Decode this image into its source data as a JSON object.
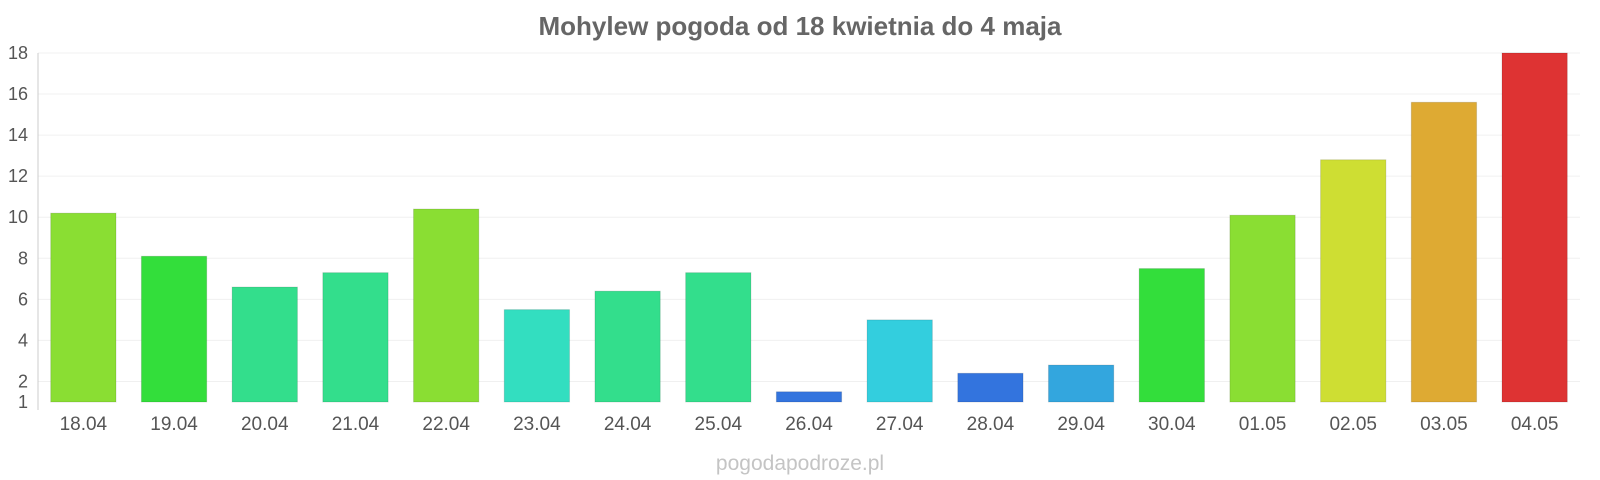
{
  "chart_data": {
    "type": "bar",
    "title": "Mohylew pogoda od 18 kwietnia do 4 maja",
    "xlabel": "",
    "ylabel": "",
    "categories": [
      "18.04",
      "19.04",
      "20.04",
      "21.04",
      "22.04",
      "23.04",
      "24.04",
      "25.04",
      "26.04",
      "27.04",
      "28.04",
      "29.04",
      "30.04",
      "01.05",
      "02.05",
      "03.05",
      "04.05"
    ],
    "values": [
      10.2,
      8.1,
      6.6,
      7.3,
      10.4,
      5.5,
      6.4,
      7.3,
      1.5,
      5.0,
      2.4,
      2.8,
      7.5,
      10.1,
      12.8,
      15.6,
      18.0
    ],
    "colors": [
      "#8ade33",
      "#33de3b",
      "#33de8c",
      "#33de8c",
      "#8ade33",
      "#33dec0",
      "#33de8c",
      "#33de8c",
      "#3374de",
      "#33cede",
      "#3374de",
      "#33a6de",
      "#33de3b",
      "#8ade33",
      "#cede33",
      "#deaa33",
      "#de3333"
    ],
    "ylim": [
      1,
      18
    ],
    "yticks": [
      1,
      2,
      4,
      6,
      8,
      10,
      12,
      14,
      16,
      18
    ],
    "grid": true,
    "legend": "none"
  },
  "watermark": "pogodapodroze.pl"
}
